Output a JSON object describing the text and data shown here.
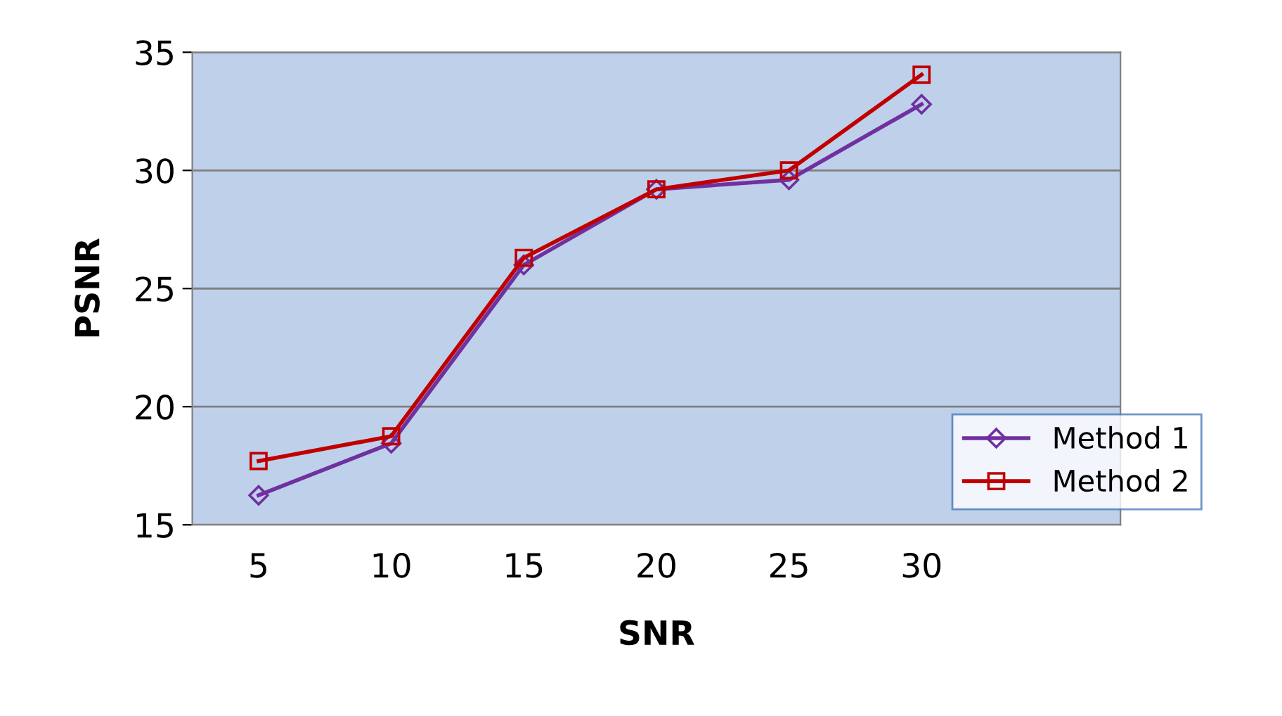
{
  "chart_data": {
    "type": "line",
    "xlabel": "SNR",
    "ylabel": "PSNR",
    "categories": [
      "5",
      "10",
      "15",
      "20",
      "25",
      "30"
    ],
    "series": [
      {
        "name": "Method 1",
        "color": "#7030a0",
        "marker": "diamond",
        "values": [
          16.25,
          18.45,
          26.0,
          29.2,
          29.6,
          32.8
        ]
      },
      {
        "name": "Method 2",
        "color": "#c00000",
        "marker": "square",
        "values": [
          17.7,
          18.75,
          26.3,
          29.2,
          30.0,
          34.05
        ]
      }
    ],
    "ylim": [
      15,
      35
    ],
    "yticks": [
      15,
      20,
      25,
      30,
      35
    ],
    "grid": "y",
    "legend": "right",
    "line_style": "solid"
  }
}
